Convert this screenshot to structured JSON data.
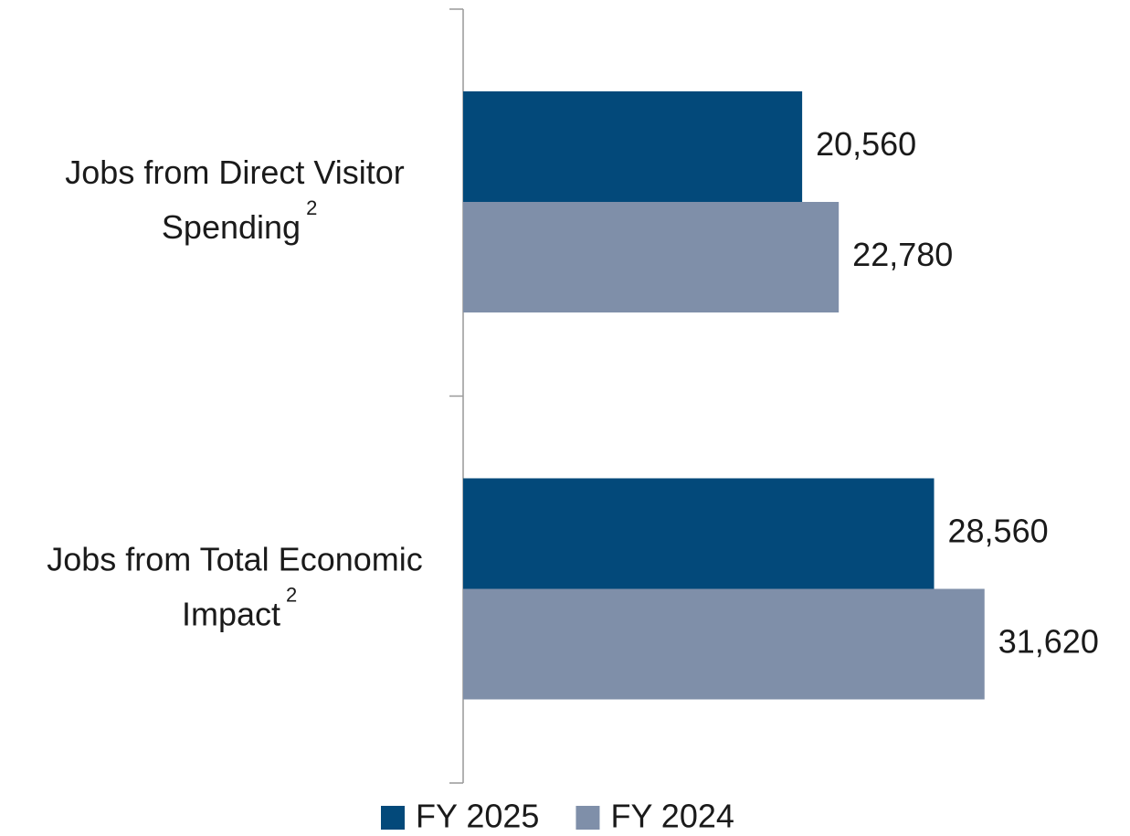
{
  "chart_data": {
    "type": "bar",
    "orientation": "horizontal",
    "categories": [
      "Jobs from Direct Visitor Spending",
      "Jobs from Total Economic Impact"
    ],
    "category_notes": [
      "2",
      "2"
    ],
    "series": [
      {
        "name": "FY 2025",
        "color": "#03497a",
        "values": [
          20560,
          28560
        ],
        "value_labels": [
          "20,560",
          "28,560"
        ]
      },
      {
        "name": "FY 2024",
        "color": "#7f8fa9",
        "values": [
          22780,
          31620
        ],
        "value_labels": [
          "22,780",
          "31,620"
        ]
      }
    ],
    "xlim": [
      0,
      40000
    ],
    "grid": false,
    "legend": "bottom"
  }
}
